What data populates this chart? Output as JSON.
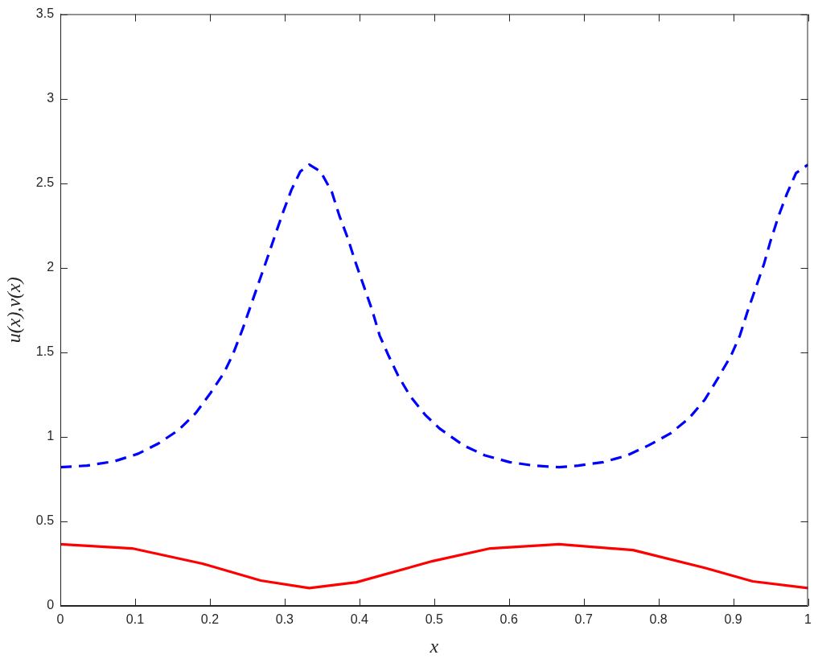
{
  "chart_data": {
    "type": "line",
    "xlabel": "x",
    "ylabel": "u(x),v(x)",
    "xlim": [
      0,
      1
    ],
    "ylim": [
      0,
      3.5
    ],
    "xticks": [
      0,
      0.1,
      0.2,
      0.3,
      0.4,
      0.5,
      0.6,
      0.7,
      0.8,
      0.9,
      1
    ],
    "yticks": [
      0,
      0.5,
      1,
      1.5,
      2,
      2.5,
      3,
      3.5
    ],
    "marker": "none",
    "grid": false,
    "legend": false,
    "series": [
      {
        "color": "#ff0000",
        "line_style": "solid",
        "x": [
          0,
          0.096,
          0.19,
          0.268,
          0.333,
          0.396,
          0.498,
          0.575,
          0.667,
          0.766,
          0.862,
          0.926,
          1
        ],
        "values": [
          0.365,
          0.34,
          0.25,
          0.15,
          0.105,
          0.14,
          0.265,
          0.34,
          0.365,
          0.33,
          0.225,
          0.145,
          0.105
        ]
      },
      {
        "color": "#0000ff",
        "line_style": "dashed",
        "x": [
          0,
          0.036,
          0.072,
          0.104,
          0.131,
          0.158,
          0.181,
          0.201,
          0.219,
          0.231,
          0.244,
          0.255,
          0.266,
          0.277,
          0.287,
          0.298,
          0.309,
          0.321,
          0.333,
          0.348,
          0.363,
          0.373,
          0.384,
          0.395,
          0.406,
          0.417,
          0.427,
          0.439,
          0.452,
          0.468,
          0.488,
          0.507,
          0.539,
          0.568,
          0.601,
          0.633,
          0.667,
          0.693,
          0.726,
          0.758,
          0.787,
          0.816,
          0.841,
          0.862,
          0.88,
          0.897,
          0.909,
          0.919,
          0.93,
          0.941,
          0.95,
          0.961,
          0.972,
          0.984,
          1
        ],
        "values": [
          0.82,
          0.83,
          0.855,
          0.9,
          0.96,
          1.04,
          1.14,
          1.26,
          1.38,
          1.49,
          1.64,
          1.78,
          1.92,
          2.06,
          2.19,
          2.33,
          2.46,
          2.57,
          2.61,
          2.57,
          2.45,
          2.31,
          2.18,
          2.03,
          1.89,
          1.75,
          1.6,
          1.48,
          1.36,
          1.24,
          1.13,
          1.05,
          0.95,
          0.89,
          0.85,
          0.83,
          0.82,
          0.83,
          0.85,
          0.89,
          0.95,
          1.02,
          1.11,
          1.22,
          1.35,
          1.48,
          1.6,
          1.74,
          1.88,
          2.02,
          2.16,
          2.31,
          2.44,
          2.56,
          2.61
        ]
      }
    ]
  }
}
